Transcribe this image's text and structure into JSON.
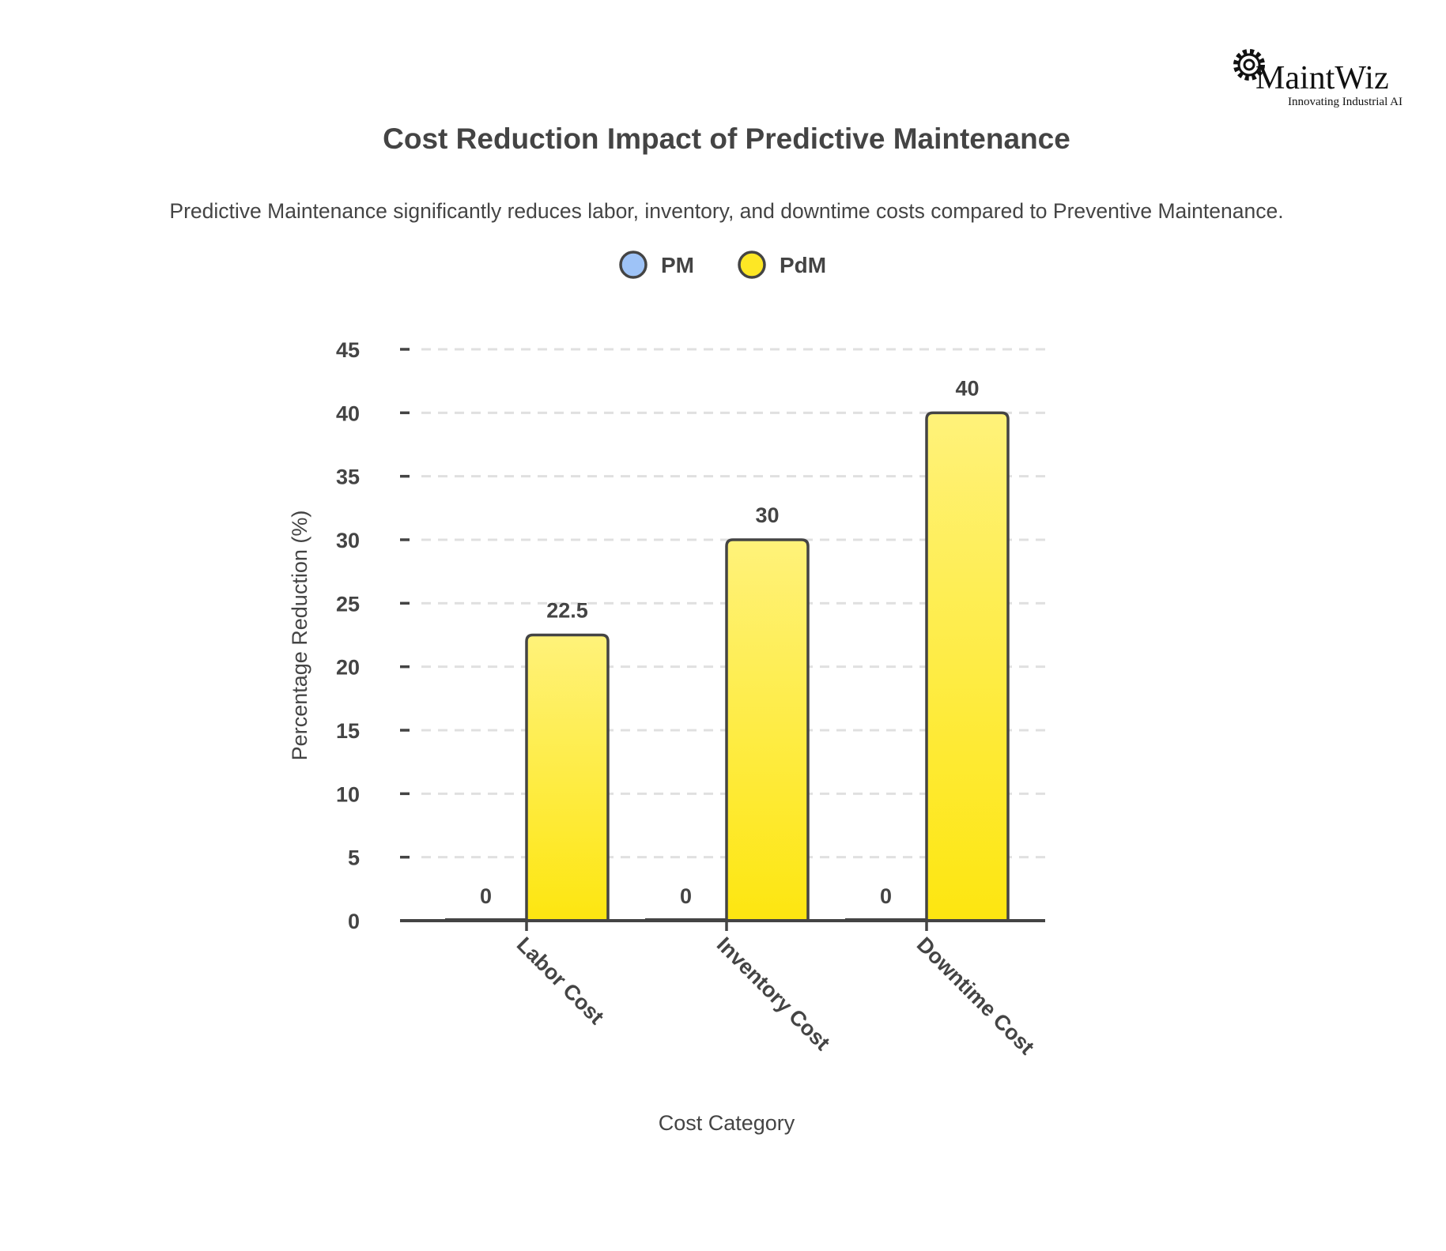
{
  "logo": {
    "name": "MaintWiz",
    "tagline": "Innovating Industrial AI"
  },
  "chart_data": {
    "type": "bar",
    "title": "Cost Reduction Impact of Predictive Maintenance",
    "subtitle": "Predictive Maintenance significantly reduces labor, inventory, and downtime costs compared to Preventive Maintenance.",
    "xlabel": "Cost Category",
    "ylabel": "Percentage Reduction (%)",
    "categories": [
      "Labor Cost",
      "Inventory Cost",
      "Downtime Cost"
    ],
    "series": [
      {
        "name": "PM",
        "color": "#9ec3f7",
        "values": [
          0,
          0,
          0
        ]
      },
      {
        "name": "PdM",
        "color": "#fde725",
        "values": [
          22.5,
          30,
          40
        ]
      }
    ],
    "ylim": [
      0,
      45
    ],
    "yticks": [
      0,
      5,
      10,
      15,
      20,
      25,
      30,
      35,
      40,
      45
    ],
    "grid": true,
    "legend": "top-center",
    "data_labels": true
  }
}
